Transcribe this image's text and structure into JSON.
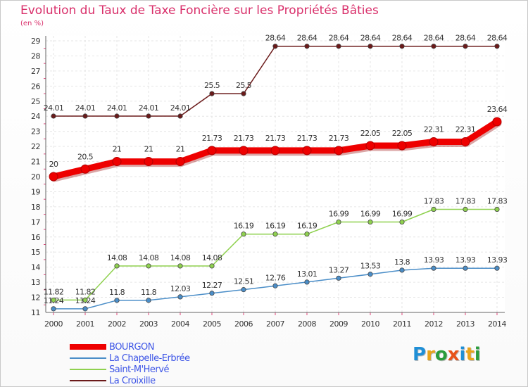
{
  "header": {
    "title": "Evolution du Taux de Taxe Foncière sur les Propriétés Bâties",
    "subtitle": "(en %)"
  },
  "logo": {
    "text": "Proxiti",
    "letter_colors": [
      "#1f8fd6",
      "#e8a41b",
      "#2a9c3c",
      "#e8541b",
      "#1f8fd6",
      "#e8a41b",
      "#2a9c3c"
    ]
  },
  "chart_data": {
    "type": "line",
    "x": [
      "2000",
      "2001",
      "2002",
      "2003",
      "2004",
      "2005",
      "2006",
      "2007",
      "2008",
      "2009",
      "2010",
      "2011",
      "2012",
      "2013",
      "2014"
    ],
    "ylim": [
      11,
      29
    ],
    "yticks": [
      11,
      12,
      13,
      14,
      15,
      16,
      17,
      18,
      19,
      20,
      21,
      22,
      23,
      24,
      25,
      26,
      27,
      28,
      29
    ],
    "grid": true,
    "legend_position": "bottom-left",
    "series": [
      {
        "name": "BOURGON",
        "color": "#ee0000",
        "values": [
          20,
          20.5,
          21,
          21,
          21,
          21.73,
          21.73,
          21.73,
          21.73,
          21.73,
          22.05,
          22.05,
          22.31,
          22.31,
          23.64
        ],
        "labels": [
          "20",
          "20.5",
          "21",
          "21",
          "21",
          "21.73",
          "21.73",
          "21.73",
          "21.73",
          "21.73",
          "22.05",
          "22.05",
          "22.31",
          "22.31",
          "23.64"
        ]
      },
      {
        "name": "La Chapelle-Erbrée",
        "color": "#4b8ec8",
        "values": [
          11.24,
          11.24,
          11.8,
          11.8,
          12.03,
          12.27,
          12.51,
          12.76,
          13.01,
          13.27,
          13.53,
          13.8,
          13.93,
          13.93,
          13.93
        ],
        "labels": [
          "11.24",
          "11.24",
          "11.8",
          "11.8",
          "12.03",
          "12.27",
          "12.51",
          "12.76",
          "13.01",
          "13.27",
          "13.53",
          "13.8",
          "13.93",
          "13.93",
          "13.93"
        ]
      },
      {
        "name": "Saint-M'Hervé",
        "color": "#8fd14f",
        "values": [
          11.82,
          11.82,
          14.08,
          14.08,
          14.08,
          14.08,
          16.19,
          16.19,
          16.19,
          16.99,
          16.99,
          16.99,
          17.83,
          17.83,
          17.83
        ],
        "labels": [
          "11.82",
          "11.82",
          "14.08",
          "14.08",
          "14.08",
          "14.08",
          "16.19",
          "16.19",
          "16.19",
          "16.99",
          "16.99",
          "16.99",
          "17.83",
          "17.83",
          "17.83"
        ]
      },
      {
        "name": "La Croixille",
        "color": "#6b1a1a",
        "values": [
          24.01,
          24.01,
          24.01,
          24.01,
          24.01,
          25.5,
          25.5,
          28.64,
          28.64,
          28.64,
          28.64,
          28.64,
          28.64,
          28.64,
          28.64
        ],
        "labels": [
          "24.01",
          "24.01",
          "24.01",
          "24.01",
          "24.01",
          "25.5",
          "25.5",
          "28.64",
          "28.64",
          "28.64",
          "28.64",
          "28.64",
          "28.64",
          "28.64",
          "28.64"
        ]
      }
    ]
  }
}
